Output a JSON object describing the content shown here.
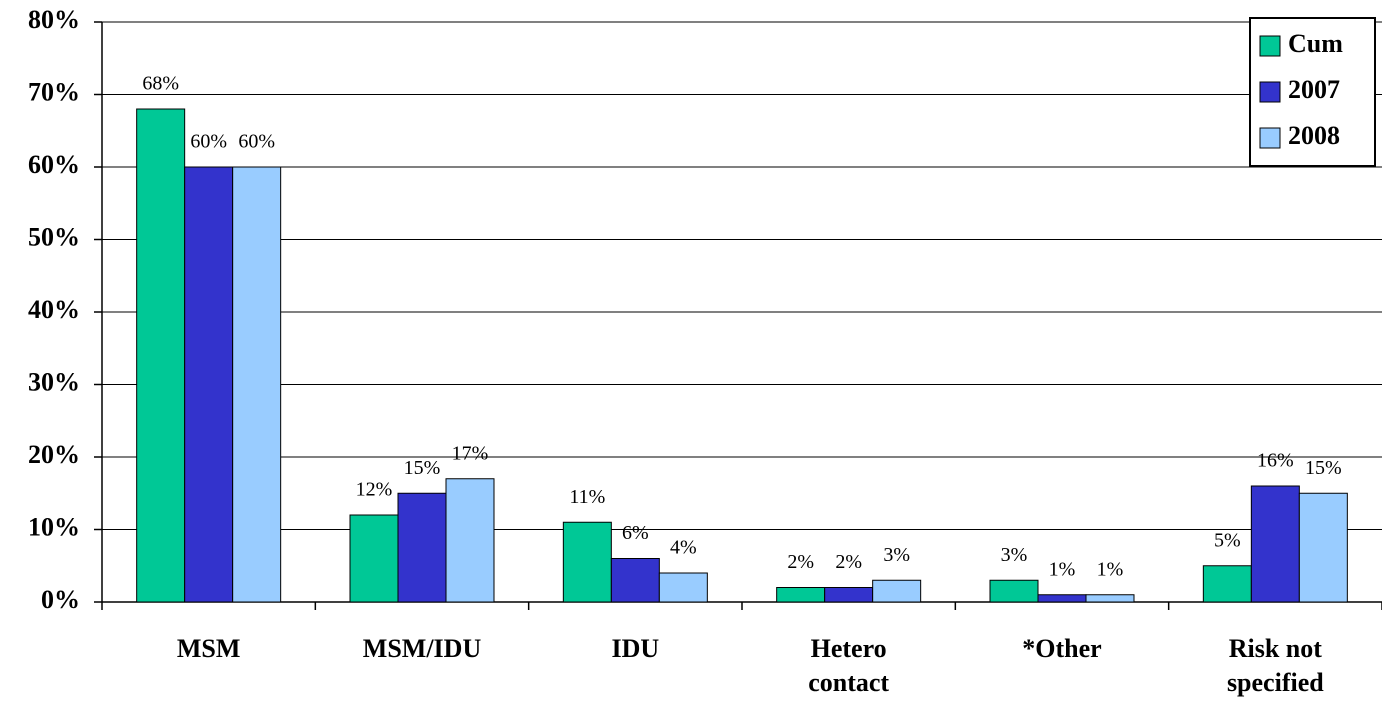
{
  "chart_data": {
    "type": "bar",
    "categories": [
      "MSM",
      "MSM/IDU",
      "IDU",
      "Hetero contact",
      "*Other",
      "Risk not specified"
    ],
    "series": [
      {
        "name": "Cum",
        "color": "#00c896",
        "values": [
          68,
          12,
          11,
          2,
          3,
          5
        ],
        "value_labels": [
          "68%",
          "12%",
          "11%",
          "2%",
          "3%",
          "5%"
        ]
      },
      {
        "name": "2007",
        "color": "#3333cc",
        "values": [
          60,
          15,
          6,
          2,
          1,
          16
        ],
        "value_labels": [
          "60%",
          "15%",
          "6%",
          "2%",
          "1%",
          "16%"
        ]
      },
      {
        "name": "2008",
        "color": "#99ccff",
        "values": [
          60,
          17,
          4,
          3,
          1,
          15
        ],
        "value_labels": [
          "60%",
          "17%",
          "4%",
          "3%",
          "1%",
          "15%"
        ]
      }
    ],
    "ylim": [
      0,
      80
    ],
    "yticks": [
      {
        "value": 0,
        "label": "0%"
      },
      {
        "value": 10,
        "label": "10%"
      },
      {
        "value": 20,
        "label": "20%"
      },
      {
        "value": 30,
        "label": "30%"
      },
      {
        "value": 40,
        "label": "40%"
      },
      {
        "value": 50,
        "label": "50%"
      },
      {
        "value": 60,
        "label": "60%"
      },
      {
        "value": 70,
        "label": "70%"
      },
      {
        "value": 80,
        "label": "80%"
      }
    ],
    "grid": true,
    "legend": "top-right"
  }
}
